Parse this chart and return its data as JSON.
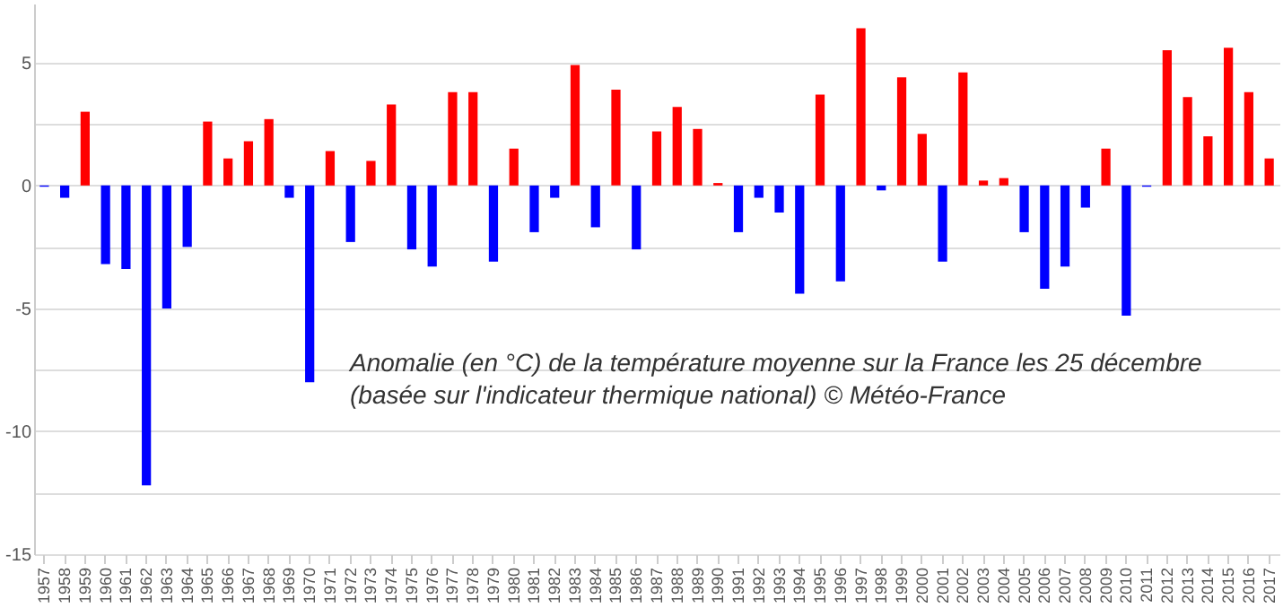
{
  "chart_data": {
    "type": "bar",
    "categories": [
      "1957",
      "1958",
      "1959",
      "1960",
      "1961",
      "1962",
      "1963",
      "1964",
      "1965",
      "1966",
      "1967",
      "1968",
      "1969",
      "1970",
      "1971",
      "1972",
      "1973",
      "1974",
      "1975",
      "1976",
      "1977",
      "1978",
      "1979",
      "1980",
      "1981",
      "1982",
      "1983",
      "1984",
      "1985",
      "1986",
      "1987",
      "1988",
      "1989",
      "1990",
      "1991",
      "1992",
      "1993",
      "1994",
      "1995",
      "1996",
      "1997",
      "1998",
      "1999",
      "2000",
      "2001",
      "2002",
      "2003",
      "2004",
      "2005",
      "2006",
      "2007",
      "2008",
      "2009",
      "2010",
      "2011",
      "2012",
      "2013",
      "2014",
      "2015",
      "2016",
      "2017"
    ],
    "values": [
      -0.05,
      -0.5,
      3.0,
      -3.2,
      -3.4,
      -12.2,
      -5.0,
      -2.5,
      2.6,
      1.1,
      1.8,
      2.7,
      -0.5,
      -8.0,
      1.4,
      -2.3,
      1.0,
      3.3,
      -2.6,
      -3.3,
      3.8,
      3.8,
      -3.1,
      1.5,
      -1.9,
      -0.5,
      4.9,
      -1.7,
      3.9,
      -2.6,
      2.2,
      3.2,
      2.3,
      0.1,
      -1.9,
      -0.5,
      -1.1,
      -4.4,
      3.7,
      -3.9,
      6.4,
      -0.2,
      4.4,
      2.1,
      -3.1,
      4.6,
      0.2,
      0.3,
      -1.9,
      -4.2,
      -3.3,
      -0.9,
      1.5,
      -5.3,
      -0.05,
      5.5,
      3.6,
      2.0,
      5.6,
      3.8,
      1.1
    ],
    "colors": [
      "#0000ff",
      "#0000ff",
      "#ff0000",
      "#0000ff",
      "#0000ff",
      "#0000ff",
      "#0000ff",
      "#0000ff",
      "#ff0000",
      "#ff0000",
      "#ff0000",
      "#ff0000",
      "#0000ff",
      "#0000ff",
      "#ff0000",
      "#0000ff",
      "#ff0000",
      "#ff0000",
      "#0000ff",
      "#0000ff",
      "#ff0000",
      "#ff0000",
      "#0000ff",
      "#ff0000",
      "#0000ff",
      "#0000ff",
      "#ff0000",
      "#0000ff",
      "#ff0000",
      "#0000ff",
      "#ff0000",
      "#ff0000",
      "#ff0000",
      "#ff0000",
      "#0000ff",
      "#0000ff",
      "#0000ff",
      "#0000ff",
      "#ff0000",
      "#0000ff",
      "#ff0000",
      "#0000ff",
      "#ff0000",
      "#ff0000",
      "#0000ff",
      "#ff0000",
      "#ff0000",
      "#ff0000",
      "#0000ff",
      "#0000ff",
      "#0000ff",
      "#0000ff",
      "#ff0000",
      "#0000ff",
      "#0000ff",
      "#ff0000",
      "#ff0000",
      "#ff0000",
      "#ff0000",
      "#ff0000",
      "#ff0000"
    ],
    "ylim": [
      -15,
      7.4
    ],
    "yticks": [
      -15,
      {
        "value": -12.5,
        "label": null
      },
      -10,
      {
        "value": -7.5,
        "label": null
      },
      -5,
      {
        "value": -2.5,
        "label": null
      },
      0,
      {
        "value": 2.5,
        "label": null
      },
      5
    ],
    "grid": "y",
    "annotations": [
      "Anomalie (en °C) de la température moyenne sur la France  les 25 décembre",
      "(basée sur l'indicateur thermique national) © Météo-France"
    ]
  }
}
